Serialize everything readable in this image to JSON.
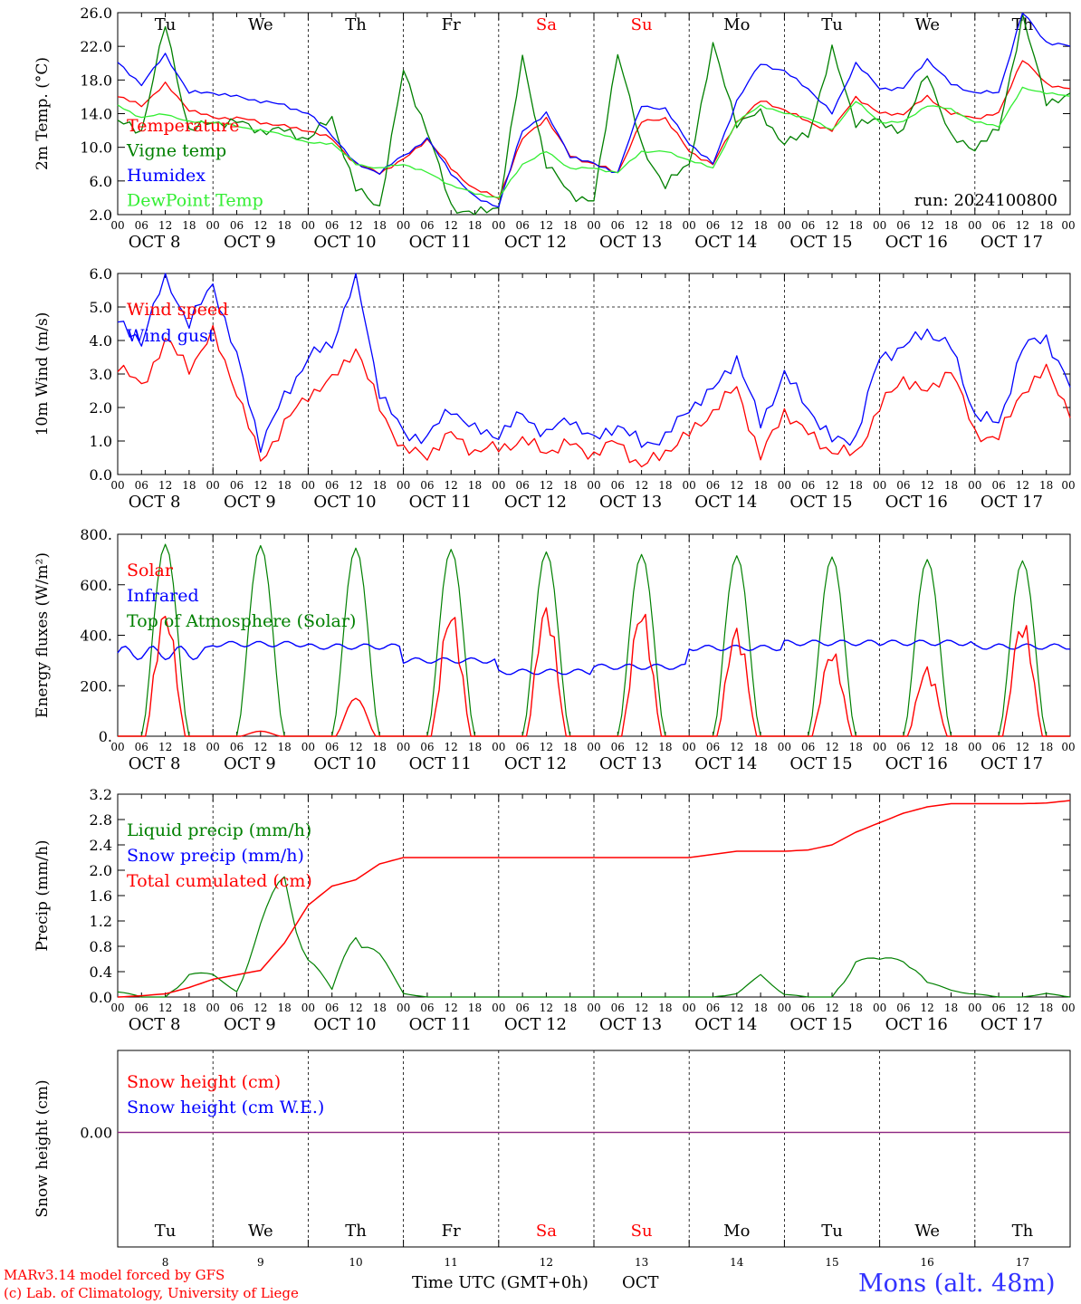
{
  "chart_data": [
    {
      "panel": "temperature",
      "type": "line",
      "ylabel": "2m Temp. (°C)",
      "ylim": [
        2.0,
        26.0
      ],
      "yticks": [
        "2.0",
        "6.0",
        "10.0",
        "14.0",
        "18.0",
        "22.0",
        "26.0"
      ],
      "day_top_labels": [
        "Tu",
        "We",
        "Th",
        "Fr",
        "Sa",
        "Su",
        "Mo",
        "Tu",
        "We",
        "Th"
      ],
      "annotation": "run: 2024100800",
      "x_hours": [
        0,
        6,
        12,
        18,
        24,
        30,
        36,
        42,
        48,
        54,
        60,
        66,
        72,
        78,
        84,
        90,
        96,
        102,
        108,
        114,
        120,
        126,
        132,
        138,
        144,
        150,
        156,
        162,
        168,
        174,
        180,
        186,
        192,
        198,
        204,
        210,
        216,
        222,
        228,
        234,
        240
      ],
      "series": [
        {
          "name": "Temperature",
          "color": "#ff0000",
          "values": [
            16.0,
            15.0,
            17.5,
            14.5,
            13.5,
            13.5,
            13.0,
            12.5,
            12.0,
            11.0,
            8.0,
            7.0,
            8.5,
            11.0,
            7.5,
            5.0,
            4.0,
            11.0,
            13.5,
            9.0,
            8.0,
            7.0,
            13.0,
            13.5,
            9.5,
            8.0,
            13.0,
            15.5,
            14.5,
            13.0,
            12.0,
            16.0,
            14.0,
            14.0,
            16.0,
            14.0,
            13.5,
            14.0,
            20.5,
            17.5,
            17.0
          ]
        },
        {
          "name": "Vigne temp",
          "color": "#008000",
          "values": [
            13.0,
            12.0,
            24.5,
            12.0,
            13.0,
            13.0,
            12.0,
            12.0,
            11.0,
            13.5,
            5.0,
            3.0,
            19.0,
            12.0,
            3.0,
            2.0,
            3.0,
            20.5,
            8.0,
            4.5,
            3.5,
            21.5,
            10.0,
            5.5,
            8.0,
            22.0,
            13.0,
            14.0,
            10.5,
            11.5,
            21.5,
            13.0,
            13.0,
            12.0,
            19.0,
            11.0,
            10.0,
            12.0,
            25.5,
            15.5,
            16.0
          ]
        },
        {
          "name": "Humidex",
          "color": "#0000ff",
          "values": [
            20.0,
            17.5,
            21.0,
            16.5,
            16.5,
            16.0,
            15.5,
            15.0,
            14.0,
            11.5,
            8.0,
            7.0,
            9.0,
            11.0,
            7.0,
            4.0,
            3.0,
            12.0,
            14.0,
            9.0,
            8.0,
            7.0,
            15.0,
            14.5,
            10.5,
            8.0,
            15.5,
            20.0,
            19.0,
            17.0,
            14.0,
            20.0,
            17.0,
            17.0,
            20.5,
            17.5,
            16.5,
            16.5,
            26.0,
            22.5,
            22.0
          ]
        },
        {
          "name": "DewPoint Temp",
          "color": "#33ee33",
          "values": [
            15.0,
            13.5,
            14.0,
            13.0,
            13.0,
            12.5,
            12.0,
            11.5,
            10.5,
            10.5,
            8.0,
            7.5,
            8.0,
            7.0,
            5.5,
            4.5,
            4.0,
            8.0,
            9.5,
            7.5,
            7.5,
            7.0,
            9.5,
            9.5,
            8.5,
            7.5,
            13.0,
            15.0,
            14.0,
            13.5,
            12.0,
            15.5,
            13.0,
            13.0,
            15.0,
            14.5,
            13.0,
            12.5,
            17.0,
            16.5,
            16.0
          ]
        }
      ]
    },
    {
      "panel": "wind",
      "type": "line",
      "ylabel": "10m Wind (m/s)",
      "ylim": [
        0.0,
        6.0
      ],
      "yticks": [
        "0.0",
        "1.0",
        "2.0",
        "3.0",
        "4.0",
        "5.0",
        "6.0"
      ],
      "ref_line": 5.0,
      "x_hours": [
        0,
        6,
        12,
        18,
        24,
        30,
        36,
        42,
        48,
        54,
        60,
        66,
        72,
        78,
        84,
        90,
        96,
        102,
        108,
        114,
        120,
        126,
        132,
        138,
        144,
        150,
        156,
        162,
        168,
        174,
        180,
        186,
        192,
        198,
        204,
        210,
        216,
        222,
        228,
        234,
        240
      ],
      "series": [
        {
          "name": "Wind speed",
          "color": "#ff0000",
          "values": [
            3.3,
            2.6,
            4.0,
            3.2,
            4.2,
            2.5,
            0.4,
            1.5,
            2.4,
            2.8,
            3.8,
            2.0,
            0.7,
            0.6,
            1.2,
            0.7,
            0.8,
            1.0,
            0.7,
            0.9,
            0.6,
            1.0,
            0.2,
            0.7,
            1.2,
            1.9,
            2.6,
            0.5,
            1.9,
            1.2,
            0.7,
            0.6,
            2.0,
            2.9,
            2.4,
            3.2,
            1.2,
            1.1,
            2.5,
            3.1,
            1.9
          ]
        },
        {
          "name": "Wind gust",
          "color": "#0000ff",
          "values": [
            4.5,
            4.0,
            5.9,
            4.5,
            5.7,
            3.5,
            0.9,
            2.3,
            3.5,
            3.9,
            5.9,
            2.5,
            1.2,
            1.1,
            2.0,
            1.3,
            1.2,
            1.8,
            1.2,
            1.7,
            1.0,
            1.5,
            0.9,
            1.1,
            2.0,
            2.5,
            3.5,
            1.5,
            3.0,
            2.0,
            1.0,
            1.1,
            3.5,
            3.8,
            4.3,
            3.8,
            1.8,
            1.5,
            3.8,
            4.1,
            2.6
          ]
        }
      ]
    },
    {
      "panel": "energy",
      "type": "line",
      "ylabel": "Energy fluxes (W/m²)",
      "ylim": [
        0,
        800
      ],
      "yticks": [
        "0.",
        "200.",
        "400.",
        "600.",
        "800."
      ],
      "day_peaks": [
        {
          "toa": 760,
          "solar": 510,
          "ir_day": 330
        },
        {
          "toa": 755,
          "solar": 20,
          "ir_day": 365
        },
        {
          "toa": 745,
          "solar": 150,
          "ir_day": 355
        },
        {
          "toa": 740,
          "solar": 510,
          "ir_day": 300
        },
        {
          "toa": 730,
          "solar": 530,
          "ir_day": 255
        },
        {
          "toa": 720,
          "solar": 520,
          "ir_day": 275
        },
        {
          "toa": 715,
          "solar": 440,
          "ir_day": 350
        },
        {
          "toa": 710,
          "solar": 350,
          "ir_day": 370
        },
        {
          "toa": 700,
          "solar": 280,
          "ir_day": 370
        },
        {
          "toa": 695,
          "solar": 470,
          "ir_day": 355
        }
      ],
      "series": [
        {
          "name": "Solar",
          "color": "#ff0000"
        },
        {
          "name": "Infrared",
          "color": "#0000ff"
        },
        {
          "name": "Top of Atmosphere (Solar)",
          "color": "#008000"
        }
      ]
    },
    {
      "panel": "precip",
      "type": "line",
      "ylabel": "Precip (mm/h)",
      "ylim": [
        0.0,
        3.2
      ],
      "yticks": [
        "0.0",
        "0.4",
        "0.8",
        "1.2",
        "1.6",
        "2.0",
        "2.4",
        "2.8",
        "3.2"
      ],
      "x_hours": [
        0,
        6,
        12,
        18,
        24,
        30,
        36,
        42,
        48,
        54,
        60,
        66,
        72,
        78,
        84,
        90,
        96,
        102,
        108,
        114,
        120,
        126,
        132,
        138,
        144,
        150,
        156,
        162,
        168,
        174,
        180,
        186,
        192,
        198,
        204,
        210,
        216,
        222,
        228,
        234,
        240
      ],
      "series": [
        {
          "name": "Liquid precip (mm/h)",
          "color": "#008000",
          "values": [
            0.1,
            0.0,
            0.0,
            0.35,
            0.3,
            0.1,
            1.0,
            1.75,
            0.6,
            0.1,
            1.05,
            0.6,
            0.05,
            0.0,
            0.0,
            0.0,
            0.0,
            0.0,
            0.0,
            0.0,
            0.0,
            0.0,
            0.0,
            0.0,
            0.0,
            0.0,
            0.05,
            0.3,
            0.05,
            0.0,
            0.0,
            0.55,
            0.5,
            0.65,
            0.2,
            0.1,
            0.05,
            0.0,
            0.0,
            0.05,
            0.0
          ]
        },
        {
          "name": "Snow precip (mm/h)",
          "color": "#0000ff",
          "values": []
        },
        {
          "name": "Total cumulated (cm)",
          "color": "#ff0000",
          "values": [
            0.0,
            0.02,
            0.05,
            0.15,
            0.28,
            0.35,
            0.42,
            0.85,
            1.45,
            1.75,
            1.85,
            2.1,
            2.2,
            2.2,
            2.2,
            2.2,
            2.2,
            2.2,
            2.2,
            2.2,
            2.2,
            2.2,
            2.2,
            2.2,
            2.2,
            2.25,
            2.3,
            2.3,
            2.3,
            2.32,
            2.4,
            2.6,
            2.75,
            2.9,
            3.0,
            3.05,
            3.05,
            3.05,
            3.05,
            3.06,
            3.1
          ]
        }
      ]
    },
    {
      "panel": "snow",
      "type": "line",
      "ylabel": "Snow height (cm)",
      "yticks": [
        "0.00"
      ],
      "day_bottom_labels": [
        "Tu",
        "We",
        "Th",
        "Fr",
        "Sa",
        "Su",
        "Mo",
        "Tu",
        "We",
        "Th"
      ],
      "day_numbers": [
        "8",
        "9",
        "10",
        "11",
        "12",
        "13",
        "14",
        "15",
        "16",
        "17"
      ],
      "series": [
        {
          "name": "Snow height (cm)",
          "color": "#ff0000",
          "values": [
            0,
            0
          ]
        },
        {
          "name": "Snow height (cm W.E.)",
          "color": "#0000ff",
          "values": [
            0,
            0
          ]
        }
      ]
    }
  ],
  "xaxis": {
    "hour_ticks": [
      "00",
      "06",
      "12",
      "18"
    ],
    "end_tick": "00",
    "date_labels": [
      "OCT  8",
      "OCT  9",
      "OCT 10",
      "OCT 11",
      "OCT 12",
      "OCT 13",
      "OCT 14",
      "OCT 15",
      "OCT 16",
      "OCT 17"
    ],
    "weekend_color": "#ff0000",
    "weekend_days": [
      4,
      5
    ]
  },
  "footer": {
    "model": "MARv3.14 model forced by GFS",
    "copyright": "(c) Lab. of Climatology, University of Liege",
    "xlabel": "Time UTC (GMT+0h)",
    "month": "OCT",
    "station": "Mons (alt. 48m)"
  }
}
